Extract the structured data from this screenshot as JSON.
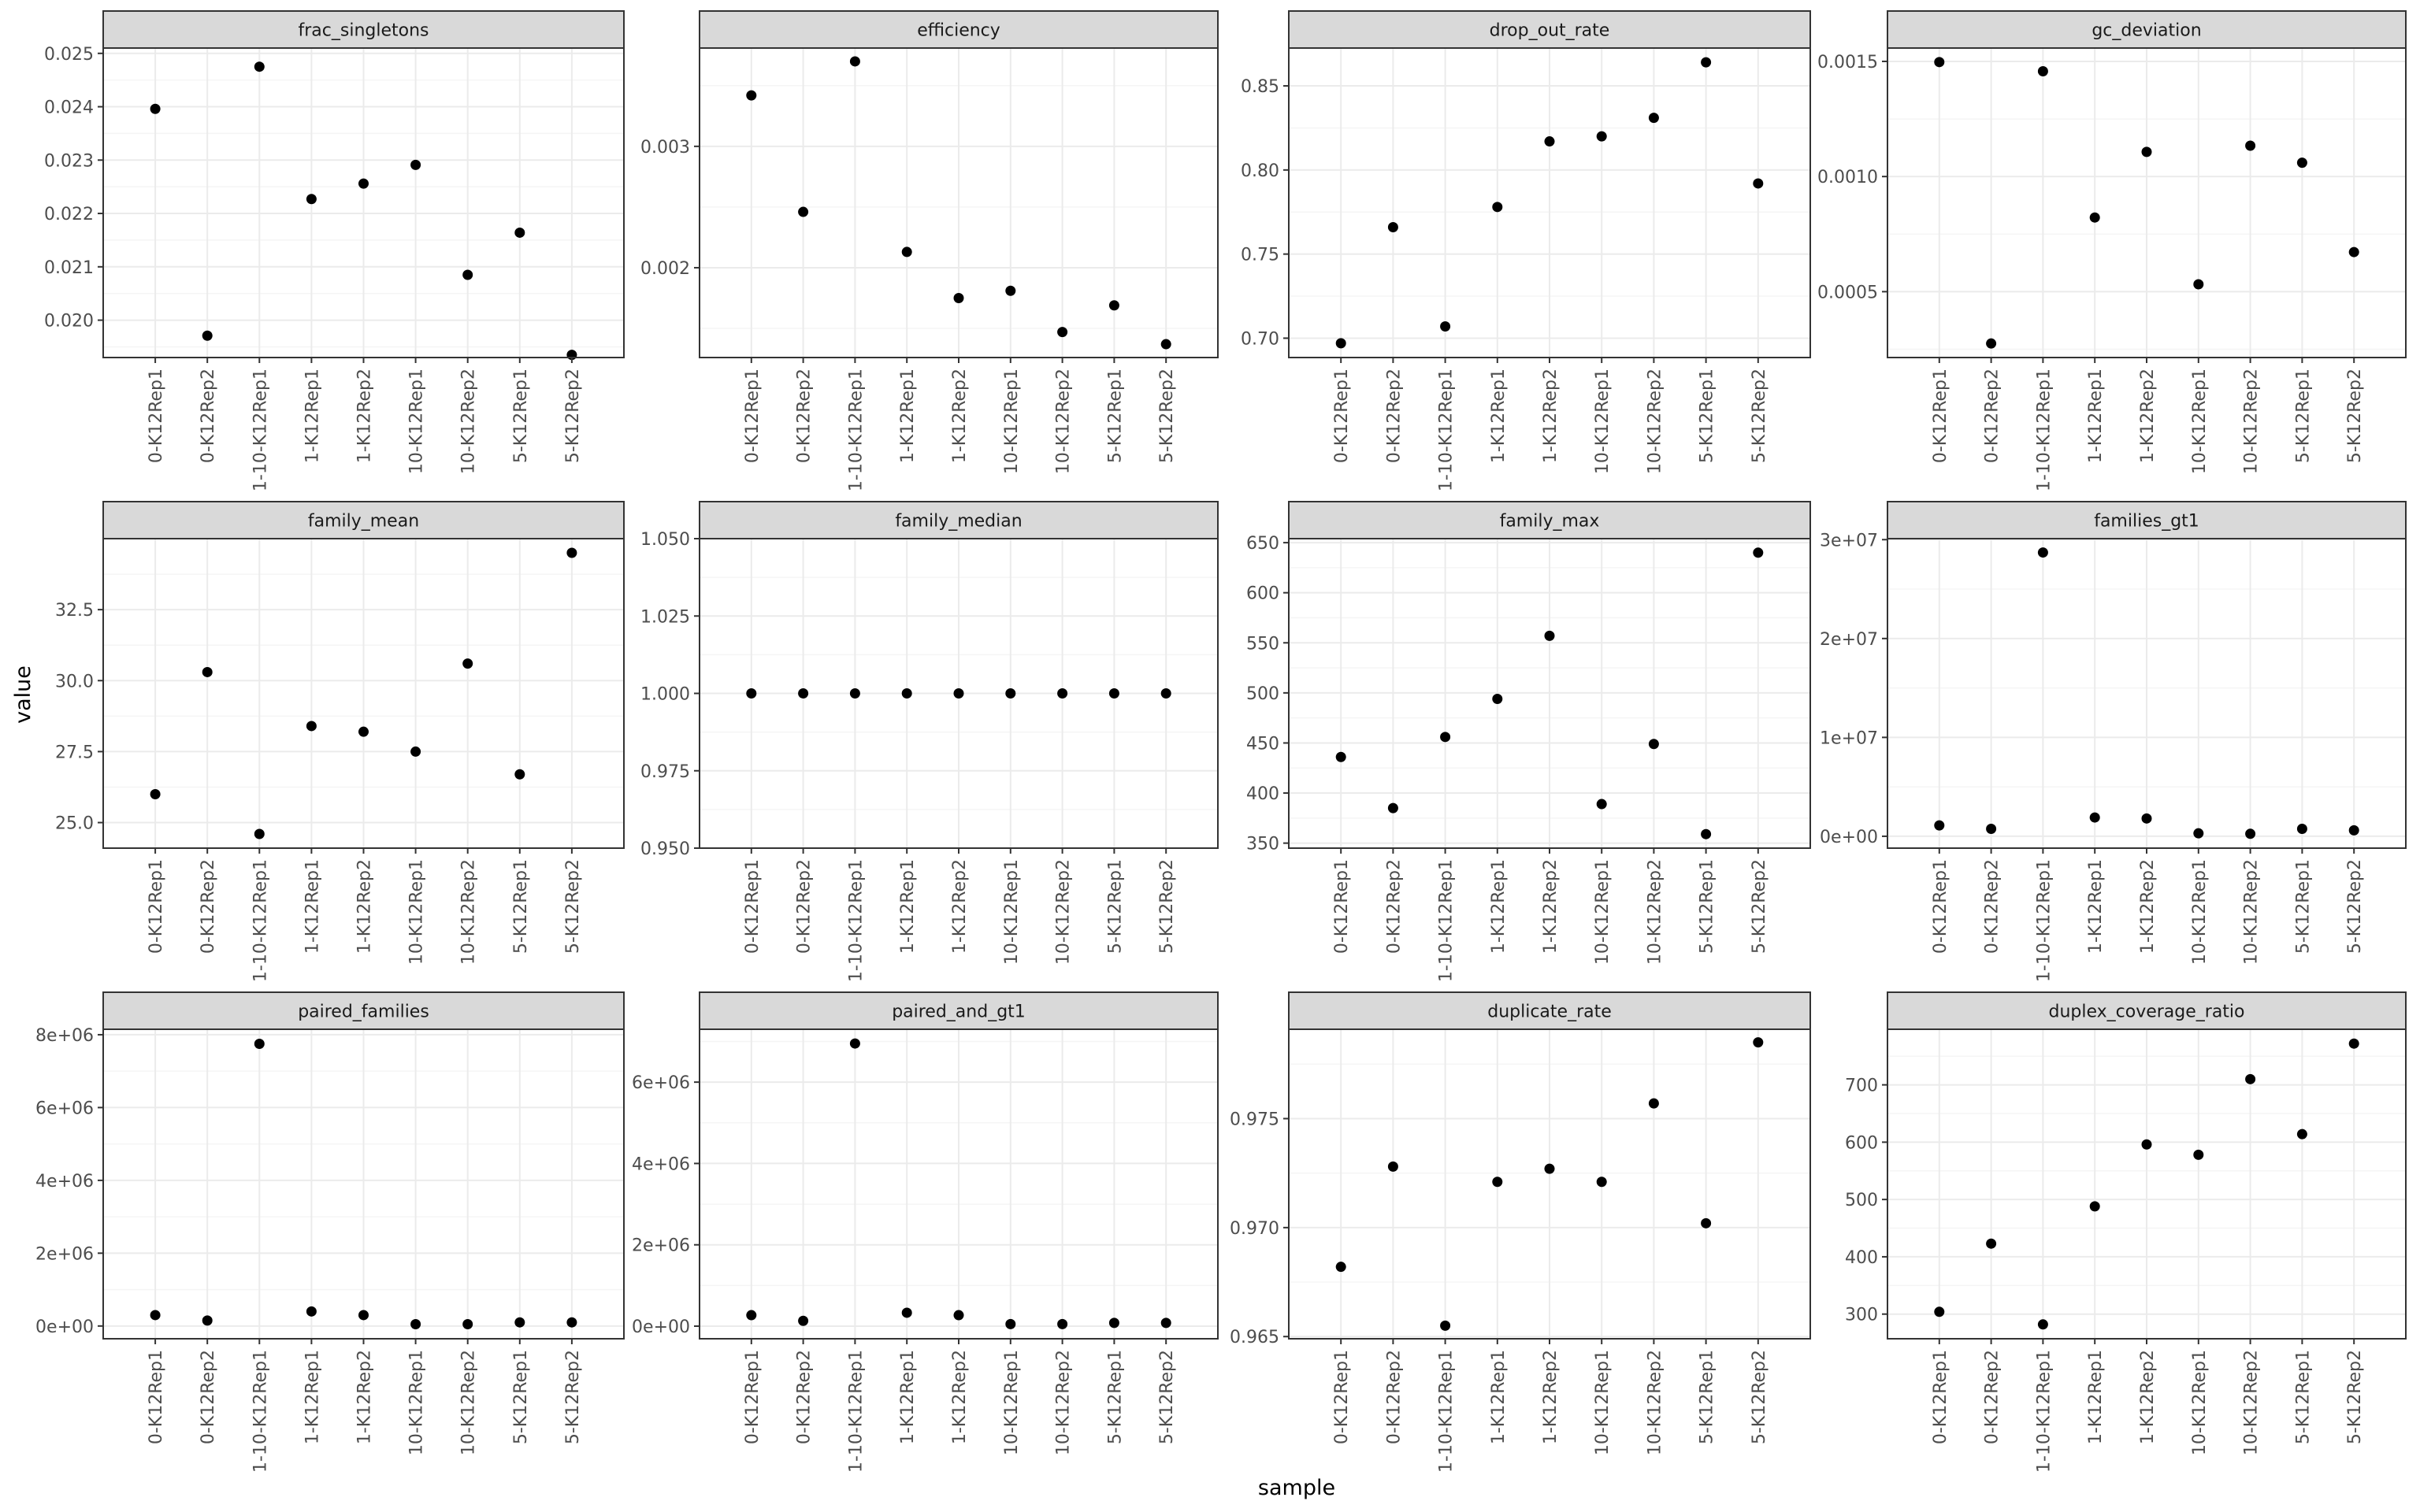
{
  "figure": {
    "xlabel": "sample",
    "ylabel": "value"
  },
  "samples": [
    "0-K12Rep1",
    "0-K12Rep2",
    "1-10-K12Rep1",
    "1-K12Rep1",
    "1-K12Rep2",
    "10-K12Rep1",
    "10-K12Rep2",
    "5-K12Rep1",
    "5-K12Rep2"
  ],
  "style": {
    "strip_fill": "#d9d9d9",
    "grid_major": "#ebebeb",
    "grid_minor": "#f5f5f5",
    "point": "#000000",
    "border": "#333333",
    "tick_text": "#4d4d4d"
  },
  "chart_data": [
    {
      "type": "scatter",
      "title": "frac_singletons",
      "categories": [
        "0-K12Rep1",
        "0-K12Rep2",
        "1-10-K12Rep1",
        "1-K12Rep1",
        "1-K12Rep2",
        "10-K12Rep1",
        "10-K12Rep2",
        "5-K12Rep1",
        "5-K12Rep2"
      ],
      "values": [
        0.02396,
        0.01971,
        0.02475,
        0.02227,
        0.02256,
        0.02291,
        0.02085,
        0.02164,
        0.01935
      ],
      "ylim": [
        0.0193,
        0.0251
      ],
      "yticks": [
        0.02,
        0.021,
        0.022,
        0.023,
        0.024,
        0.025
      ],
      "yticklabels": [
        "0.020",
        "0.021",
        "0.022",
        "0.023",
        "0.024",
        "0.025"
      ],
      "grid": true
    },
    {
      "type": "scatter",
      "title": "efficiency",
      "categories": [
        "0-K12Rep1",
        "0-K12Rep2",
        "1-10-K12Rep1",
        "1-K12Rep1",
        "1-K12Rep2",
        "10-K12Rep1",
        "10-K12Rep2",
        "5-K12Rep1",
        "5-K12Rep2"
      ],
      "values": [
        0.00342,
        0.00246,
        0.0037,
        0.00213,
        0.00175,
        0.00181,
        0.00147,
        0.00169,
        0.00137
      ],
      "ylim": [
        0.00126,
        0.00381
      ],
      "yticks": [
        0.002,
        0.003
      ],
      "yticklabels": [
        "0.002",
        "0.003"
      ],
      "grid": true
    },
    {
      "type": "scatter",
      "title": "drop_out_rate",
      "categories": [
        "0-K12Rep1",
        "0-K12Rep2",
        "1-10-K12Rep1",
        "1-K12Rep1",
        "1-K12Rep2",
        "10-K12Rep1",
        "10-K12Rep2",
        "5-K12Rep1",
        "5-K12Rep2"
      ],
      "values": [
        0.697,
        0.766,
        0.707,
        0.778,
        0.817,
        0.82,
        0.831,
        0.864,
        0.792
      ],
      "ylim": [
        0.6885,
        0.8725
      ],
      "yticks": [
        0.7,
        0.75,
        0.8,
        0.85
      ],
      "yticklabels": [
        "0.70",
        "0.75",
        "0.80",
        "0.85"
      ],
      "grid": true
    },
    {
      "type": "scatter",
      "title": "gc_deviation",
      "categories": [
        "0-K12Rep1",
        "0-K12Rep2",
        "1-10-K12Rep1",
        "1-K12Rep1",
        "1-K12Rep2",
        "10-K12Rep1",
        "10-K12Rep2",
        "5-K12Rep1",
        "5-K12Rep2"
      ],
      "values": [
        0.001497,
        0.000275,
        0.001457,
        0.000822,
        0.001107,
        0.000532,
        0.001134,
        0.00106,
        0.000672
      ],
      "ylim": [
        0.000214,
        0.001558
      ],
      "yticks": [
        0.0005,
        0.001,
        0.0015
      ],
      "yticklabels": [
        "0.0005",
        "0.0010",
        "0.0015"
      ],
      "grid": true
    },
    {
      "type": "scatter",
      "title": "family_mean",
      "categories": [
        "0-K12Rep1",
        "0-K12Rep2",
        "1-10-K12Rep1",
        "1-K12Rep1",
        "1-K12Rep2",
        "10-K12Rep1",
        "10-K12Rep2",
        "5-K12Rep1",
        "5-K12Rep2"
      ],
      "values": [
        26.0,
        30.3,
        24.6,
        28.4,
        28.2,
        27.5,
        30.6,
        26.7,
        34.5
      ],
      "ylim": [
        24.1,
        35.0
      ],
      "yticks": [
        25.0,
        27.5,
        30.0,
        32.5
      ],
      "yticklabels": [
        "25.0",
        "27.5",
        "30.0",
        "32.5"
      ],
      "grid": true
    },
    {
      "type": "scatter",
      "title": "family_median",
      "categories": [
        "0-K12Rep1",
        "0-K12Rep2",
        "1-10-K12Rep1",
        "1-K12Rep1",
        "1-K12Rep2",
        "10-K12Rep1",
        "10-K12Rep2",
        "5-K12Rep1",
        "5-K12Rep2"
      ],
      "values": [
        1,
        1,
        1,
        1,
        1,
        1,
        1,
        1,
        1
      ],
      "ylim": [
        0.95,
        1.05
      ],
      "yticks": [
        0.95,
        0.975,
        1.0,
        1.025,
        1.05
      ],
      "yticklabels": [
        "0.950",
        "0.975",
        "1.000",
        "1.025",
        "1.050"
      ],
      "grid": true
    },
    {
      "type": "scatter",
      "title": "family_max",
      "categories": [
        "0-K12Rep1",
        "0-K12Rep2",
        "1-10-K12Rep1",
        "1-K12Rep1",
        "1-K12Rep2",
        "10-K12Rep1",
        "10-K12Rep2",
        "5-K12Rep1",
        "5-K12Rep2"
      ],
      "values": [
        436,
        385,
        456,
        494,
        557,
        389,
        449,
        359,
        640
      ],
      "ylim": [
        345,
        654
      ],
      "yticks": [
        350,
        400,
        450,
        500,
        550,
        600,
        650
      ],
      "yticklabels": [
        "350",
        "400",
        "450",
        "500",
        "550",
        "600",
        "650"
      ],
      "grid": true
    },
    {
      "type": "scatter",
      "title": "families_gt1",
      "categories": [
        "0-K12Rep1",
        "0-K12Rep2",
        "1-10-K12Rep1",
        "1-K12Rep1",
        "1-K12Rep2",
        "10-K12Rep1",
        "10-K12Rep2",
        "5-K12Rep1",
        "5-K12Rep2"
      ],
      "values": [
        1100000,
        750000,
        28700000,
        1900000,
        1800000,
        300000,
        250000,
        750000,
        600000
      ],
      "ylim": [
        -1200000,
        30100000
      ],
      "yticks": [
        0,
        10000000,
        20000000,
        30000000
      ],
      "yticklabels": [
        "0e+00",
        "1e+07",
        "2e+07",
        "3e+07"
      ],
      "grid": true
    },
    {
      "type": "scatter",
      "title": "paired_families",
      "categories": [
        "0-K12Rep1",
        "0-K12Rep2",
        "1-10-K12Rep1",
        "1-K12Rep1",
        "1-K12Rep2",
        "10-K12Rep1",
        "10-K12Rep2",
        "5-K12Rep1",
        "5-K12Rep2"
      ],
      "values": [
        300000,
        150000,
        7750000,
        400000,
        300000,
        50000,
        50000,
        100000,
        100000
      ],
      "ylim": [
        -350000,
        8150000
      ],
      "yticks": [
        0,
        2000000,
        4000000,
        6000000,
        8000000
      ],
      "yticklabels": [
        "0e+00",
        "2e+06",
        "4e+06",
        "6e+06",
        "8e+06"
      ],
      "grid": true
    },
    {
      "type": "scatter",
      "title": "paired_and_gt1",
      "categories": [
        "0-K12Rep1",
        "0-K12Rep2",
        "1-10-K12Rep1",
        "1-K12Rep1",
        "1-K12Rep2",
        "10-K12Rep1",
        "10-K12Rep2",
        "5-K12Rep1",
        "5-K12Rep2"
      ],
      "values": [
        270000,
        130000,
        6950000,
        330000,
        270000,
        50000,
        50000,
        80000,
        80000
      ],
      "ylim": [
        -310000,
        7300000
      ],
      "yticks": [
        0,
        2000000,
        4000000,
        6000000
      ],
      "yticklabels": [
        "0e+00",
        "2e+06",
        "4e+06",
        "6e+06"
      ],
      "grid": true
    },
    {
      "type": "scatter",
      "title": "duplicate_rate",
      "categories": [
        "0-K12Rep1",
        "0-K12Rep2",
        "1-10-K12Rep1",
        "1-K12Rep1",
        "1-K12Rep2",
        "10-K12Rep1",
        "10-K12Rep2",
        "5-K12Rep1",
        "5-K12Rep2"
      ],
      "values": [
        0.9682,
        0.9728,
        0.9655,
        0.9721,
        0.9727,
        0.9721,
        0.9757,
        0.9702,
        0.9785
      ],
      "ylim": [
        0.9649,
        0.9791
      ],
      "yticks": [
        0.965,
        0.97,
        0.975
      ],
      "yticklabels": [
        "0.965",
        "0.970",
        "0.975"
      ],
      "grid": true
    },
    {
      "type": "scatter",
      "title": "duplex_coverage_ratio",
      "categories": [
        "0-K12Rep1",
        "0-K12Rep2",
        "1-10-K12Rep1",
        "1-K12Rep1",
        "1-K12Rep2",
        "10-K12Rep1",
        "10-K12Rep2",
        "5-K12Rep1",
        "5-K12Rep2"
      ],
      "values": [
        304,
        423,
        282,
        488,
        596,
        578,
        710,
        614,
        772
      ],
      "ylim": [
        257,
        797
      ],
      "yticks": [
        300,
        400,
        500,
        600,
        700
      ],
      "yticklabels": [
        "300",
        "400",
        "500",
        "600",
        "700"
      ],
      "grid": true
    }
  ]
}
